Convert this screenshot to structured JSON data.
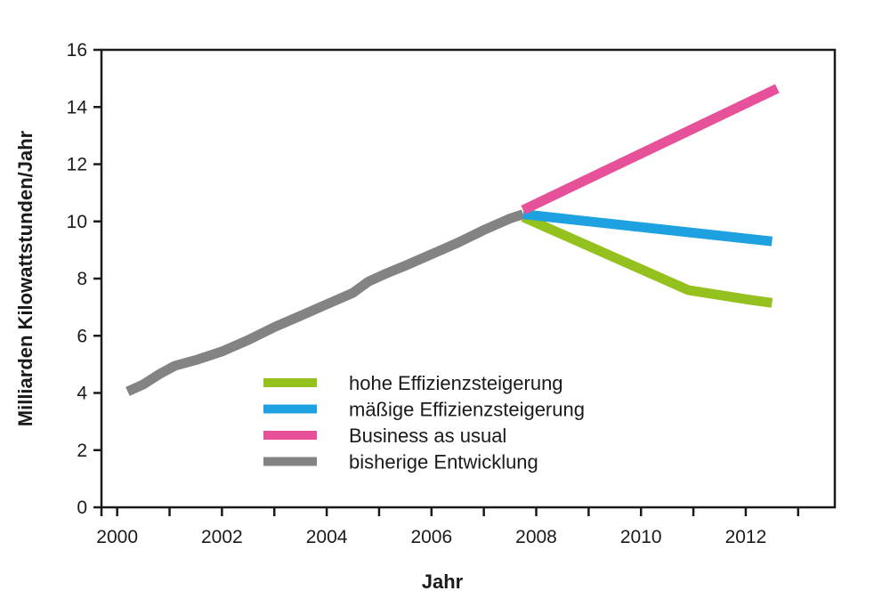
{
  "chart_data": {
    "type": "line",
    "title": "",
    "xlabel": "Jahr",
    "ylabel": "Milliarden Kilowattstunden/Jahr",
    "xlim": [
      1999.7,
      2013.7
    ],
    "ylim": [
      0,
      16
    ],
    "x_ticks": [
      2000,
      2002,
      2004,
      2006,
      2008,
      2010,
      2012
    ],
    "x_tick_labels": [
      "2000",
      "2002",
      "2004",
      "2006",
      "2008",
      "2010",
      "2012"
    ],
    "x_minor_ticks": [
      2001,
      2003,
      2005,
      2007,
      2009,
      2011,
      2013
    ],
    "y_ticks": [
      0,
      2,
      4,
      6,
      8,
      10,
      12,
      14,
      16
    ],
    "y_tick_labels": [
      "0",
      "2",
      "4",
      "6",
      "8",
      "10",
      "12",
      "14",
      "16"
    ],
    "grid": false,
    "legend_position": "bottom-center",
    "series": [
      {
        "name": "hohe Effizienzsteigerung",
        "color": "#95c11f",
        "points": [
          [
            2007.75,
            10.15
          ],
          [
            2010.9,
            7.6
          ],
          [
            2012.1,
            7.25
          ],
          [
            2012.5,
            7.15
          ]
        ]
      },
      {
        "name": "mäßige Effizienzsteigerung",
        "color": "#1ea1e0",
        "points": [
          [
            2007.75,
            10.25
          ],
          [
            2012.5,
            9.3
          ]
        ]
      },
      {
        "name": "Business as usual",
        "color": "#e6519a",
        "points": [
          [
            2007.75,
            10.4
          ],
          [
            2012.6,
            14.65
          ]
        ]
      },
      {
        "name": "bisherige Entwicklung",
        "color": "#838383",
        "points": [
          [
            2000.2,
            4.05
          ],
          [
            2000.5,
            4.3
          ],
          [
            2000.8,
            4.65
          ],
          [
            2001.1,
            4.95
          ],
          [
            2001.5,
            5.15
          ],
          [
            2002.0,
            5.45
          ],
          [
            2002.5,
            5.85
          ],
          [
            2003.0,
            6.3
          ],
          [
            2003.5,
            6.7
          ],
          [
            2004.0,
            7.1
          ],
          [
            2004.5,
            7.5
          ],
          [
            2004.8,
            7.9
          ],
          [
            2005.1,
            8.15
          ],
          [
            2005.5,
            8.45
          ],
          [
            2006.0,
            8.85
          ],
          [
            2006.5,
            9.25
          ],
          [
            2007.0,
            9.7
          ],
          [
            2007.5,
            10.1
          ],
          [
            2007.75,
            10.25
          ]
        ]
      }
    ],
    "legend_order": [
      0,
      1,
      2,
      3
    ]
  }
}
